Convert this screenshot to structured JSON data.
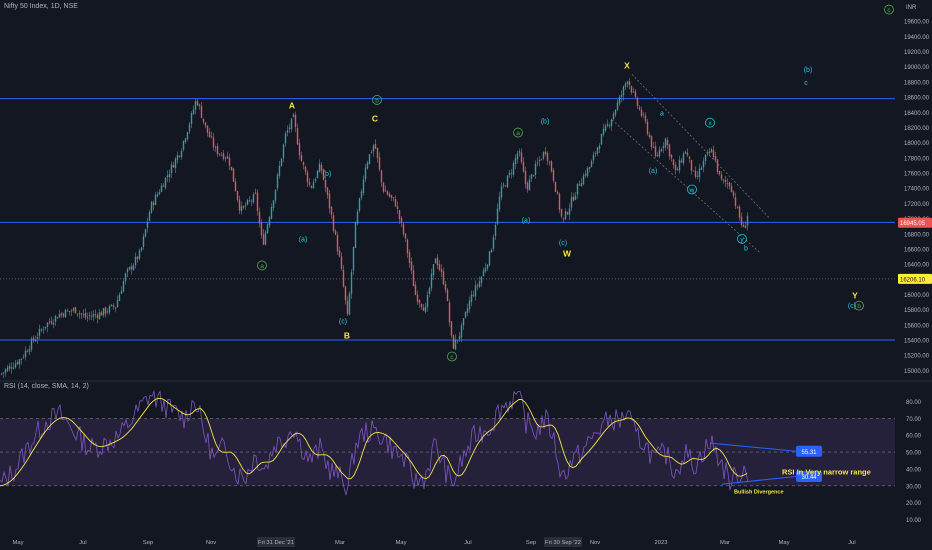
{
  "header": {
    "symbol_title": "Nifty 50 Index, 1D, NSE",
    "rsi_title": "RSI (14, close, SMA, 14, 2)",
    "currency": "INR"
  },
  "colors": {
    "background": "#131722",
    "up_candle": "#26a69a",
    "down_candle": "#ef5350",
    "level_line": "#2962ff",
    "wave_yellow": "#f5e642",
    "wave_green": "#4caf50",
    "wave_cyan": "#26c6da",
    "wave_purple": "#9c27b0",
    "rsi_line": "#7e57c2",
    "rsi_ma": "#f5e642",
    "rsi_band": "#2a2340"
  },
  "chart_data": [
    {
      "type": "candlestick",
      "x_tick_labels": [
        "May",
        "Jul",
        "Sep",
        "Nov",
        "Fri 31 Dec '21",
        "Mar",
        "May",
        "Jul",
        "Sep",
        "Fri 30 Sep '22",
        "Nov",
        "2023",
        "Mar",
        "May",
        "Jul"
      ],
      "y_tick_labels": [
        "19600.00",
        "19400.00",
        "19200.00",
        "19000.00",
        "18800.00",
        "18600.00",
        "18400.00",
        "18200.00",
        "18000.00",
        "17800.00",
        "17600.00",
        "17400.00",
        "17200.00",
        "17000.00",
        "16800.00",
        "16600.00",
        "16400.00",
        "16200.00",
        "16000.00",
        "15800.00",
        "15600.00",
        "15400.00",
        "15200.00",
        "15000.00"
      ],
      "ylim": [
        14900,
        19800
      ],
      "price_labels": [
        {
          "value": 16945.05,
          "text": "16945.05",
          "color": "#ef5350"
        },
        {
          "value": 16206.1,
          "text": "16206.10",
          "color": "#ffeb3b"
        }
      ],
      "horizontal_levels": [
        18580,
        16950,
        15400
      ],
      "dotted_levels": [
        16206.1
      ],
      "approx_close_path": [
        [
          0,
          14950
        ],
        [
          10,
          15050
        ],
        [
          20,
          15150
        ],
        [
          30,
          15350
        ],
        [
          45,
          15600
        ],
        [
          60,
          15750
        ],
        [
          75,
          15800
        ],
        [
          85,
          15700
        ],
        [
          100,
          15750
        ],
        [
          115,
          15850
        ],
        [
          125,
          16250
        ],
        [
          140,
          16550
        ],
        [
          150,
          17150
        ],
        [
          160,
          17400
        ],
        [
          170,
          17650
        ],
        [
          180,
          17900
        ],
        [
          190,
          18300
        ],
        [
          196,
          18580
        ],
        [
          205,
          18200
        ],
        [
          215,
          17900
        ],
        [
          228,
          17800
        ],
        [
          240,
          17100
        ],
        [
          255,
          17300
        ],
        [
          262,
          16650
        ],
        [
          275,
          17400
        ],
        [
          285,
          18100
        ],
        [
          293,
          18320
        ],
        [
          300,
          17800
        ],
        [
          310,
          17400
        ],
        [
          320,
          17700
        ],
        [
          330,
          17100
        ],
        [
          340,
          16400
        ],
        [
          347,
          15700
        ],
        [
          355,
          16900
        ],
        [
          365,
          17700
        ],
        [
          374,
          18000
        ],
        [
          382,
          17400
        ],
        [
          395,
          17200
        ],
        [
          405,
          16700
        ],
        [
          415,
          16000
        ],
        [
          425,
          15800
        ],
        [
          435,
          16500
        ],
        [
          445,
          16100
        ],
        [
          452,
          15300
        ],
        [
          460,
          15500
        ],
        [
          470,
          15950
        ],
        [
          480,
          16200
        ],
        [
          490,
          16550
        ],
        [
          500,
          17350
        ],
        [
          510,
          17600
        ],
        [
          518,
          17900
        ],
        [
          526,
          17400
        ],
        [
          536,
          17700
        ],
        [
          545,
          17900
        ],
        [
          552,
          17600
        ],
        [
          562,
          16950
        ],
        [
          570,
          17200
        ],
        [
          580,
          17500
        ],
        [
          590,
          17700
        ],
        [
          600,
          18050
        ],
        [
          610,
          18300
        ],
        [
          620,
          18600
        ],
        [
          627,
          18850
        ],
        [
          635,
          18550
        ],
        [
          645,
          18250
        ],
        [
          655,
          17800
        ],
        [
          665,
          18050
        ],
        [
          675,
          17600
        ],
        [
          685,
          17900
        ],
        [
          695,
          17500
        ],
        [
          705,
          17800
        ],
        [
          712,
          17900
        ],
        [
          720,
          17500
        ],
        [
          730,
          17450
        ],
        [
          737,
          17100
        ],
        [
          743,
          16850
        ],
        [
          748,
          17100
        ]
      ],
      "wave_labels": [
        {
          "text": "X",
          "x": 627,
          "price": 18980,
          "color": "yellow"
        },
        {
          "text": "A",
          "x": 292,
          "price": 18450,
          "color": "yellow"
        },
        {
          "text": "C",
          "x": 375,
          "price": 18280,
          "color": "yellow"
        },
        {
          "text": "W",
          "x": 567,
          "price": 16500,
          "color": "yellow"
        },
        {
          "text": "B",
          "x": 347,
          "price": 15420,
          "color": "yellow"
        },
        {
          "text": "Y",
          "x": 855,
          "price": 15950,
          "color": "yellow"
        },
        {
          "text": "b",
          "x": 377,
          "price": 18530,
          "color": "green",
          "circled": true
        },
        {
          "text": "a",
          "x": 262,
          "price": 16350,
          "color": "green",
          "circled": true
        },
        {
          "text": "a",
          "x": 518,
          "price": 18100,
          "color": "green",
          "circled": true
        },
        {
          "text": "c",
          "x": 452,
          "price": 15150,
          "color": "green",
          "circled": true
        },
        {
          "text": "b",
          "x": 859,
          "price": 15820,
          "color": "green",
          "circled": true
        },
        {
          "text": "c",
          "x": 889,
          "price": 19720,
          "color": "green",
          "circled": true
        },
        {
          "text": "(b)",
          "x": 327,
          "price": 17560,
          "color": "cyan"
        },
        {
          "text": "(a)",
          "x": 303,
          "price": 16700,
          "color": "cyan"
        },
        {
          "text": "(c)",
          "x": 343,
          "price": 15620,
          "color": "cyan"
        },
        {
          "text": "(b)",
          "x": 545,
          "price": 18250,
          "color": "cyan"
        },
        {
          "text": "(a)",
          "x": 526,
          "price": 16950,
          "color": "cyan"
        },
        {
          "text": "(c)",
          "x": 563,
          "price": 16650,
          "color": "cyan"
        },
        {
          "text": "(a)",
          "x": 653,
          "price": 17600,
          "color": "cyan"
        },
        {
          "text": "(b)",
          "x": 808,
          "price": 18930,
          "color": "cyan"
        },
        {
          "text": "(c)",
          "x": 852,
          "price": 15820,
          "color": "cyan"
        },
        {
          "text": "a",
          "x": 662,
          "price": 18360,
          "color": "cyan"
        },
        {
          "text": "c",
          "x": 806,
          "price": 18760,
          "color": "cyan"
        },
        {
          "text": "b",
          "x": 746,
          "price": 16580,
          "color": "cyan"
        },
        {
          "text": "x",
          "x": 710,
          "price": 18230,
          "color": "cyan",
          "circled": true
        },
        {
          "text": "w",
          "x": 692,
          "price": 17350,
          "color": "cyan",
          "circled": true
        },
        {
          "text": "y",
          "x": 742,
          "price": 16700,
          "color": "cyan",
          "circled": true
        }
      ]
    },
    {
      "type": "line",
      "title": "RSI (14, close, SMA, 14, 2)",
      "y_tick_labels": [
        "80.00",
        "70.00",
        "60.00",
        "50.00",
        "40.00",
        "30.00",
        "20.00",
        "10.00"
      ],
      "ylim": [
        5,
        88
      ],
      "band": [
        30,
        70
      ],
      "midline": 50,
      "rsi_values_approx": [
        [
          0,
          30
        ],
        [
          15,
          40
        ],
        [
          30,
          55
        ],
        [
          45,
          68
        ],
        [
          60,
          72
        ],
        [
          75,
          62
        ],
        [
          90,
          52
        ],
        [
          105,
          55
        ],
        [
          120,
          60
        ],
        [
          135,
          72
        ],
        [
          150,
          84
        ],
        [
          160,
          80
        ],
        [
          170,
          75
        ],
        [
          185,
          70
        ],
        [
          195,
          82
        ],
        [
          205,
          60
        ],
        [
          215,
          45
        ],
        [
          225,
          55
        ],
        [
          235,
          38
        ],
        [
          245,
          35
        ],
        [
          255,
          48
        ],
        [
          265,
          40
        ],
        [
          275,
          55
        ],
        [
          285,
          58
        ],
        [
          293,
          66
        ],
        [
          300,
          55
        ],
        [
          310,
          45
        ],
        [
          320,
          52
        ],
        [
          330,
          40
        ],
        [
          340,
          35
        ],
        [
          348,
          30
        ],
        [
          356,
          55
        ],
        [
          365,
          62
        ],
        [
          375,
          62
        ],
        [
          385,
          58
        ],
        [
          395,
          50
        ],
        [
          405,
          45
        ],
        [
          415,
          32
        ],
        [
          425,
          35
        ],
        [
          435,
          55
        ],
        [
          445,
          40
        ],
        [
          452,
          30
        ],
        [
          462,
          45
        ],
        [
          475,
          60
        ],
        [
          490,
          65
        ],
        [
          500,
          76
        ],
        [
          510,
          80
        ],
        [
          518,
          85
        ],
        [
          526,
          68
        ],
        [
          536,
          62
        ],
        [
          545,
          70
        ],
        [
          552,
          62
        ],
        [
          562,
          35
        ],
        [
          572,
          45
        ],
        [
          582,
          50
        ],
        [
          592,
          58
        ],
        [
          602,
          66
        ],
        [
          612,
          70
        ],
        [
          620,
          68
        ],
        [
          627,
          74
        ],
        [
          635,
          60
        ],
        [
          645,
          55
        ],
        [
          655,
          45
        ],
        [
          665,
          50
        ],
        [
          675,
          38
        ],
        [
          685,
          50
        ],
        [
          695,
          42
        ],
        [
          705,
          52
        ],
        [
          712,
          55
        ],
        [
          720,
          45
        ],
        [
          730,
          33
        ],
        [
          737,
          36
        ],
        [
          743,
          40
        ],
        [
          748,
          38
        ]
      ],
      "annotations": [
        {
          "text": "RSI In Very narrow range",
          "color": "#f5e642"
        },
        {
          "text": "Bullish Divergence",
          "color": "#f5e642"
        }
      ],
      "trendline_labels": [
        {
          "text": "55.31"
        },
        {
          "text": "30.44"
        }
      ]
    }
  ]
}
